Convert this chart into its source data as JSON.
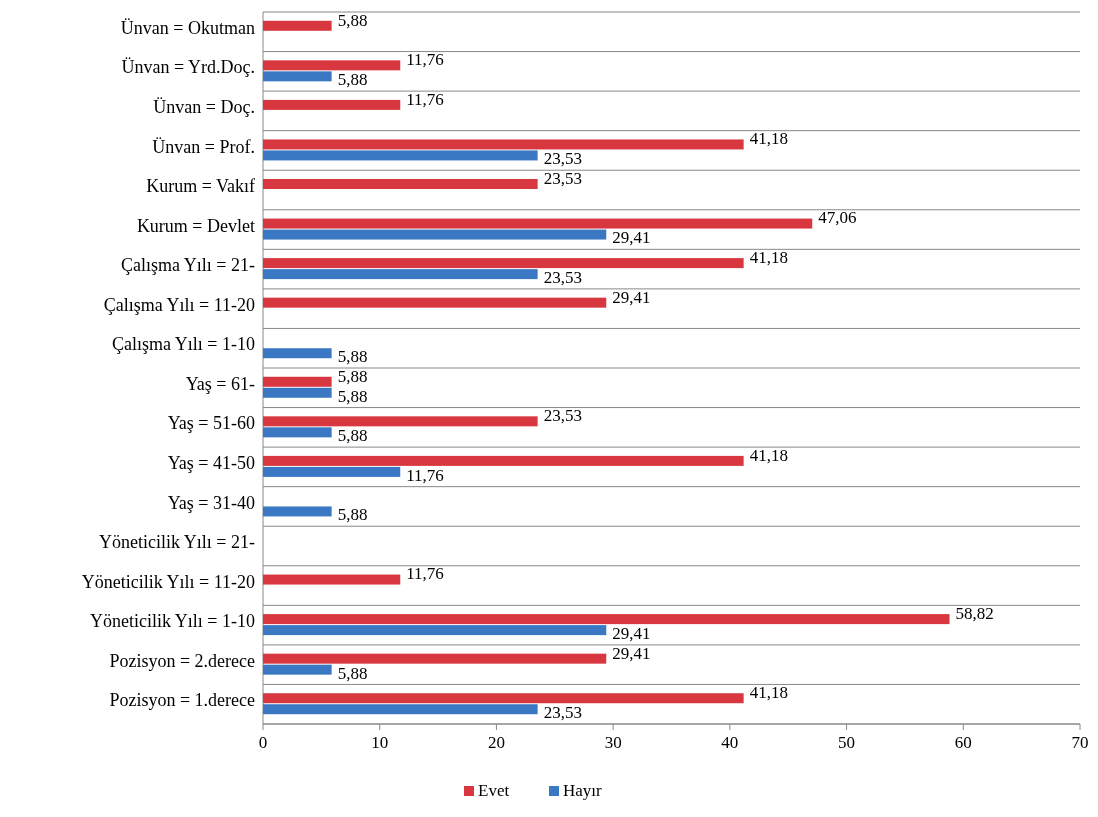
{
  "chart_data": {
    "type": "bar",
    "orientation": "horizontal",
    "categories": [
      "Ünvan = Okutman",
      "Ünvan = Yrd.Doç.",
      "Ünvan = Doç.",
      "Ünvan = Prof.",
      "Kurum = Vakıf",
      "Kurum = Devlet",
      "Çalışma Yılı = 21-",
      "Çalışma Yılı = 11-20",
      "Çalışma Yılı = 1-10",
      "Yaş = 61-",
      "Yaş = 51-60",
      "Yaş = 41-50",
      "Yaş = 31-40",
      "Yöneticilik Yılı = 21-",
      "Yöneticilik Yılı = 11-20",
      "Yöneticilik Yılı = 1-10",
      "Pozisyon = 2.derece",
      "Pozisyon = 1.derece"
    ],
    "series": [
      {
        "name": "Evet",
        "color": "#d8373f",
        "values": [
          5.88,
          11.76,
          11.76,
          41.18,
          23.53,
          47.06,
          41.18,
          29.41,
          null,
          5.88,
          23.53,
          41.18,
          null,
          null,
          11.76,
          58.82,
          29.41,
          41.18
        ],
        "value_labels": [
          "5,88",
          "11,76",
          "11,76",
          "41,18",
          "23,53",
          "47,06",
          "41,18",
          "29,41",
          null,
          "5,88",
          "23,53",
          "41,18",
          null,
          null,
          "11,76",
          "58,82",
          "29,41",
          "41,18"
        ]
      },
      {
        "name": "Hayır",
        "color": "#3b78c3",
        "values": [
          null,
          5.88,
          null,
          23.53,
          null,
          29.41,
          23.53,
          null,
          5.88,
          5.88,
          5.88,
          11.76,
          5.88,
          null,
          null,
          29.41,
          5.88,
          23.53
        ],
        "value_labels": [
          null,
          "5,88",
          null,
          "23,53",
          null,
          "29,41",
          "23,53",
          null,
          "5,88",
          "5,88",
          "5,88",
          "11,76",
          "5,88",
          null,
          null,
          "29,41",
          "5,88",
          "23,53"
        ]
      }
    ],
    "xlim": [
      0,
      70
    ],
    "xticks": [
      0,
      10,
      20,
      30,
      40,
      50,
      60,
      70
    ],
    "grid": "y",
    "legend": "bottom"
  }
}
